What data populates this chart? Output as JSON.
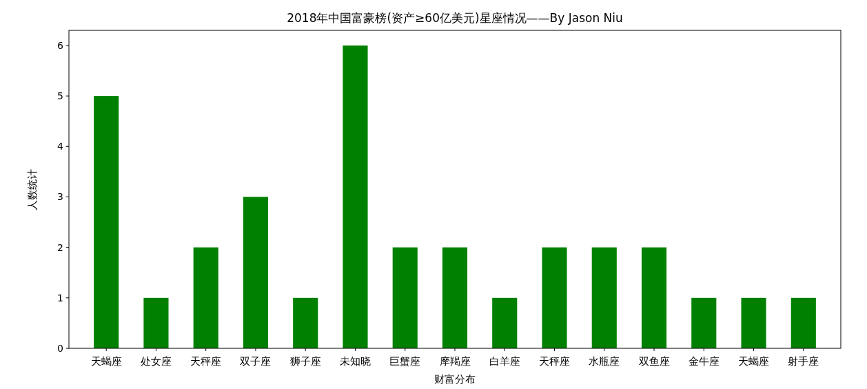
{
  "chart_data": {
    "type": "bar",
    "title": "2018年中国富豪榜(资产≥60亿美元)星座情况——By Jason Niu",
    "xlabel": "财富分布",
    "ylabel": "人数统计",
    "categories": [
      "天蝎座",
      "处女座",
      "天秤座",
      "双子座",
      "狮子座",
      "未知晓",
      "巨蟹座",
      "摩羯座",
      "白羊座",
      "天秤座",
      "水瓶座",
      "双鱼座",
      "金牛座",
      "天蝎座",
      "射手座"
    ],
    "values": [
      5,
      1,
      2,
      3,
      1,
      6,
      2,
      2,
      1,
      2,
      2,
      2,
      1,
      1,
      1
    ],
    "color": "#008000",
    "ylim": [
      0,
      6.3
    ],
    "yticks": [
      0,
      1,
      2,
      3,
      4,
      5,
      6
    ],
    "grid": false
  }
}
